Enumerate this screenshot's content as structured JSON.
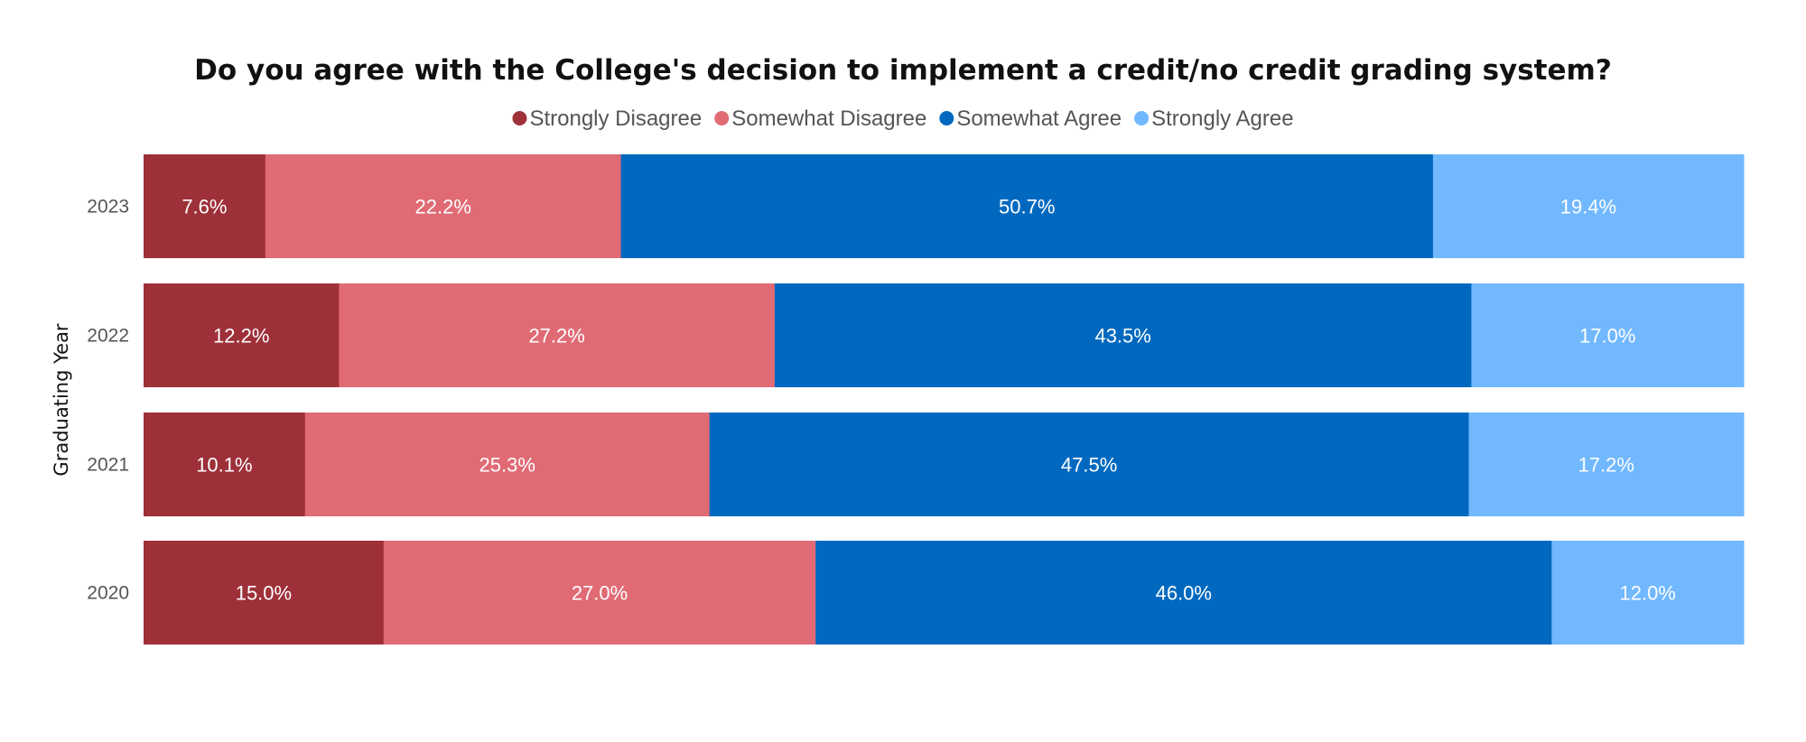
{
  "chart_data": {
    "type": "bar",
    "orientation": "horizontal",
    "stacked": "100%",
    "title": "Do you agree with the College's decision to implement a credit/no credit grading system?",
    "ylabel": "Graduating Year",
    "xlabel": "",
    "categories": [
      "2023",
      "2022",
      "2021",
      "2020"
    ],
    "legend_position": "top-center",
    "grid": false,
    "series": [
      {
        "name": "Strongly Disagree",
        "color": "#9E3039",
        "values": [
          7.6,
          12.2,
          10.1,
          15.0
        ],
        "labels": [
          "7.6%",
          "12.2%",
          "10.1%",
          "15.0%"
        ]
      },
      {
        "name": "Somewhat Disagree",
        "color": "#E06B75",
        "values": [
          22.2,
          27.2,
          25.3,
          27.0
        ],
        "labels": [
          "22.2%",
          "27.2%",
          "25.3%",
          "27.0%"
        ]
      },
      {
        "name": "Somewhat Agree",
        "color": "#0069BF",
        "values": [
          50.7,
          43.5,
          47.5,
          46.0
        ],
        "labels": [
          "50.7%",
          "43.5%",
          "47.5%",
          "46.0%"
        ]
      },
      {
        "name": "Strongly Agree",
        "color": "#71B8FF",
        "values": [
          19.4,
          17.0,
          17.2,
          12.0
        ],
        "labels": [
          "19.4%",
          "17.0%",
          "17.2%",
          "12.0%"
        ]
      }
    ]
  }
}
